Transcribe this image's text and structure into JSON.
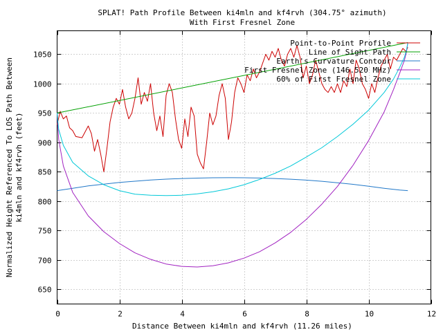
{
  "chart_data": {
    "type": "line",
    "title": "SPLAT! Path Profile Between ki4mln and kf4rvh (304.75° azimuth)",
    "subtitle": "With First Fresnel Zone",
    "xlabel": "Distance Between ki4mln and kf4rvh (11.26 miles)",
    "ylabel_line1": "Normalized Height Referenced To LOS Path Between",
    "ylabel_line2": "ki4mln and kf4rvh (feet)",
    "xlim": [
      0,
      12
    ],
    "ylim": [
      625,
      1090
    ],
    "x_ticks": [
      0,
      2,
      4,
      6,
      8,
      10,
      12
    ],
    "y_ticks": [
      650,
      700,
      750,
      800,
      850,
      900,
      950,
      1000,
      1050
    ],
    "grid": true,
    "legend_position": "top-right",
    "series": [
      {
        "name": "Point-to-Point Profile",
        "color": "#cc0000",
        "x": [
          0.0,
          0.1,
          0.2,
          0.3,
          0.4,
          0.5,
          0.6,
          0.8,
          1.0,
          1.1,
          1.2,
          1.3,
          1.4,
          1.5,
          1.6,
          1.7,
          1.8,
          1.9,
          2.0,
          2.1,
          2.2,
          2.3,
          2.4,
          2.5,
          2.6,
          2.7,
          2.8,
          2.9,
          3.0,
          3.1,
          3.2,
          3.3,
          3.4,
          3.5,
          3.6,
          3.7,
          3.8,
          3.9,
          4.0,
          4.1,
          4.2,
          4.3,
          4.4,
          4.5,
          4.6,
          4.7,
          4.8,
          4.9,
          5.0,
          5.1,
          5.2,
          5.3,
          5.4,
          5.5,
          5.6,
          5.7,
          5.8,
          5.9,
          6.0,
          6.1,
          6.2,
          6.3,
          6.4,
          6.5,
          6.6,
          6.7,
          6.8,
          6.9,
          7.0,
          7.1,
          7.2,
          7.3,
          7.4,
          7.5,
          7.6,
          7.7,
          7.8,
          7.9,
          8.0,
          8.1,
          8.2,
          8.3,
          8.4,
          8.5,
          8.6,
          8.7,
          8.8,
          8.9,
          9.0,
          9.1,
          9.2,
          9.3,
          9.4,
          9.5,
          9.6,
          9.7,
          9.8,
          9.9,
          10.0,
          10.1,
          10.2,
          10.3,
          10.4,
          10.5,
          10.6,
          10.7,
          10.8,
          10.9,
          11.0,
          11.1,
          11.2,
          11.26
        ],
        "y": [
          930,
          953,
          940,
          945,
          925,
          920,
          910,
          908,
          928,
          915,
          885,
          905,
          880,
          850,
          890,
          935,
          960,
          975,
          965,
          990,
          960,
          940,
          950,
          975,
          1010,
          965,
          985,
          970,
          1000,
          950,
          920,
          945,
          910,
          980,
          1000,
          985,
          940,
          905,
          890,
          940,
          910,
          960,
          945,
          880,
          865,
          855,
          900,
          950,
          930,
          945,
          980,
          1000,
          975,
          905,
          935,
          985,
          1010,
          1000,
          985,
          1015,
          1005,
          1025,
          1010,
          1020,
          1035,
          1050,
          1040,
          1055,
          1045,
          1060,
          1040,
          1030,
          1050,
          1060,
          1045,
          1065,
          1045,
          1010,
          1030,
          1000,
          1015,
          1040,
          1020,
          1000,
          990,
          985,
          995,
          985,
          1000,
          985,
          1005,
          995,
          1025,
          1000,
          1040,
          1025,
          1000,
          990,
          975,
          1000,
          985,
          1010,
          1030,
          1040,
          1050,
          1025,
          1045,
          1040,
          1050,
          1060,
          1055,
          1062
        ]
      },
      {
        "name": "Line of Sight Path",
        "color": "#00a000",
        "x": [
          0,
          11.26
        ],
        "y": [
          950,
          1070
        ]
      },
      {
        "name": "Earth's Curvature Contour",
        "color": "#1f77c8",
        "x": [
          0.0,
          0.5,
          1.0,
          1.5,
          2.0,
          2.5,
          3.0,
          3.5,
          4.0,
          4.5,
          5.0,
          5.5,
          5.63,
          6.0,
          6.5,
          7.0,
          7.5,
          8.0,
          8.5,
          9.0,
          9.5,
          10.0,
          10.5,
          11.0,
          11.26
        ],
        "y": [
          818,
          822,
          826,
          829,
          832,
          834,
          836,
          837.5,
          838.5,
          839.3,
          839.8,
          840,
          840,
          839.9,
          839.4,
          838.6,
          837.4,
          835.8,
          833.8,
          831.4,
          828.6,
          825.4,
          821.8,
          818.9,
          818
        ]
      },
      {
        "name": "First Fresnel Zone (146.520 MHz)",
        "color": "#a020c0",
        "x": [
          0.0,
          0.05,
          0.2,
          0.5,
          1.0,
          1.5,
          2.0,
          2.5,
          3.0,
          3.5,
          4.0,
          4.5,
          5.0,
          5.5,
          6.0,
          6.5,
          7.0,
          7.5,
          8.0,
          8.5,
          9.0,
          9.5,
          10.0,
          10.5,
          10.8,
          11.0,
          11.15,
          11.22,
          11.26
        ],
        "y": [
          950,
          905,
          860,
          815,
          775,
          748,
          728,
          712,
          701,
          693,
          689,
          688,
          690,
          695,
          703,
          714,
          729,
          747,
          769,
          795,
          825,
          861,
          903,
          952,
          990,
          1018,
          1040,
          1055,
          1070
        ]
      },
      {
        "name": "60% of First Fresnel Zone",
        "color": "#00c8d8",
        "x": [
          0.0,
          0.05,
          0.2,
          0.5,
          1.0,
          1.5,
          2.0,
          2.5,
          3.0,
          3.5,
          4.0,
          4.5,
          5.0,
          5.5,
          6.0,
          6.5,
          7.0,
          7.5,
          8.0,
          8.5,
          9.0,
          9.5,
          10.0,
          10.5,
          10.8,
          11.0,
          11.15,
          11.22,
          11.26
        ],
        "y": [
          950,
          922,
          895,
          866,
          843,
          828,
          818,
          812,
          810,
          809.5,
          810,
          812.5,
          816,
          821,
          828,
          837,
          847.5,
          860,
          875,
          891,
          910,
          931,
          955,
          985,
          1008,
          1028,
          1045,
          1058,
          1070
        ]
      }
    ]
  }
}
